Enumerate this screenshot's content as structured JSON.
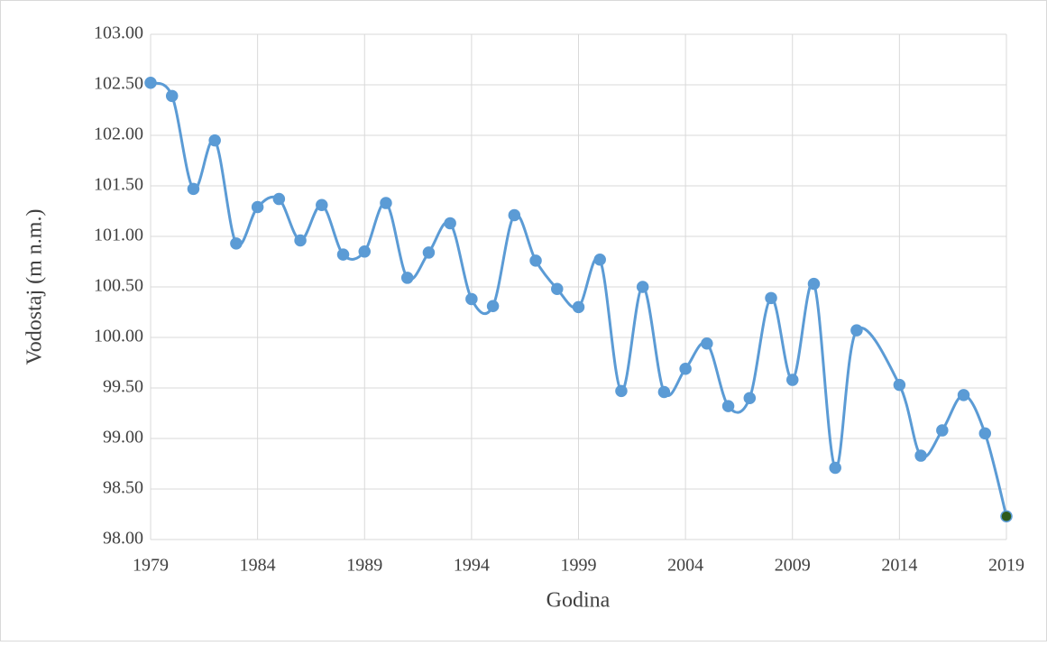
{
  "chart_data": {
    "type": "line",
    "x_label": "Godina",
    "y_label": "Vodostaj (m n.m.)",
    "x": [
      1979,
      1980,
      1981,
      1982,
      1983,
      1984,
      1985,
      1986,
      1987,
      1988,
      1989,
      1990,
      1991,
      1992,
      1993,
      1994,
      1995,
      1996,
      1997,
      1998,
      1999,
      2000,
      2001,
      2002,
      2003,
      2004,
      2005,
      2006,
      2007,
      2008,
      2009,
      2010,
      2011,
      2012,
      2014,
      2015,
      2016,
      2017,
      2018,
      2019
    ],
    "series": [
      {
        "color": "#5b9bd5",
        "smooth": true,
        "last_marker_color": "#2e5b1e",
        "values": [
          102.52,
          102.39,
          101.47,
          101.95,
          100.93,
          101.29,
          101.37,
          100.96,
          101.31,
          100.82,
          100.85,
          101.33,
          100.59,
          100.84,
          101.13,
          100.38,
          100.31,
          101.21,
          100.76,
          100.48,
          100.3,
          100.77,
          99.47,
          100.5,
          99.46,
          99.69,
          99.94,
          99.32,
          99.4,
          100.39,
          99.58,
          100.53,
          98.71,
          100.07,
          99.53,
          98.83,
          99.08,
          99.43,
          99.05,
          98.23
        ]
      }
    ],
    "xlim": [
      1979,
      2019
    ],
    "xticks": [
      1979,
      1984,
      1989,
      1994,
      1999,
      2004,
      2009,
      2014,
      2019
    ],
    "ylim": [
      98,
      103
    ],
    "yticks": [
      {
        "value": 98,
        "label": "98.00"
      },
      {
        "value": 98.5,
        "label": "98.50"
      },
      {
        "value": 99,
        "label": "99.00"
      },
      {
        "value": 99.5,
        "label": "99.50"
      },
      {
        "value": 100,
        "label": "100.00"
      },
      {
        "value": 100.5,
        "label": "100.50"
      },
      {
        "value": 101,
        "label": "101.00"
      },
      {
        "value": 101.5,
        "label": "101.50"
      },
      {
        "value": 102,
        "label": "102.00"
      },
      {
        "value": 102.5,
        "label": "102.50"
      },
      {
        "value": 103,
        "label": "103.00"
      }
    ],
    "grid": true
  }
}
